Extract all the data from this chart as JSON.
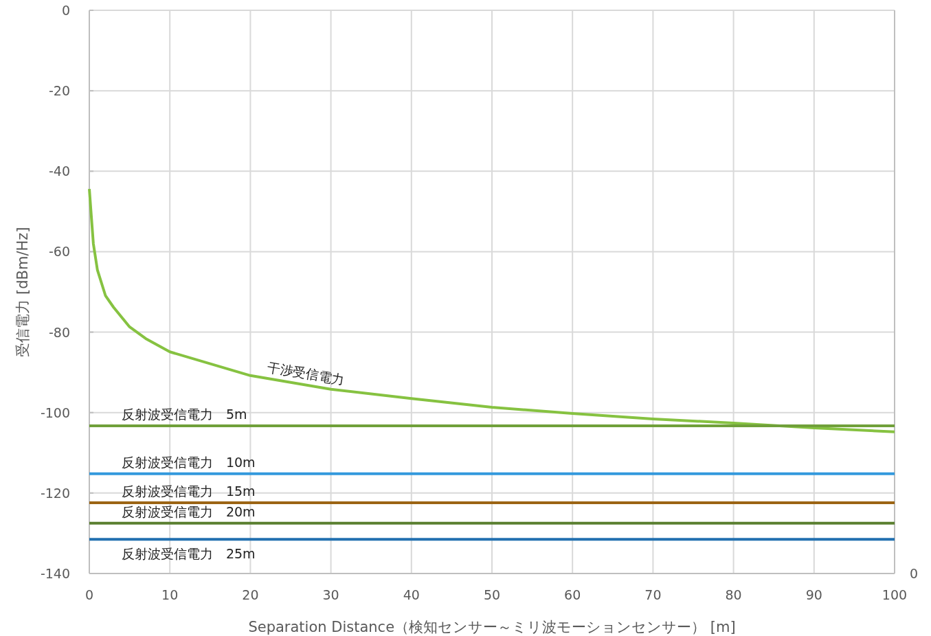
{
  "chart_data": {
    "type": "line",
    "xlabel": "Separation Distance（検知センサー～ミリ波モーションセンサー） [m]",
    "ylabel": "受信電力 [dBm/Hz]",
    "xlim": [
      0,
      100
    ],
    "xticks": [
      0,
      10,
      20,
      30,
      40,
      50,
      60,
      70,
      80,
      90,
      100
    ],
    "ylim": [
      -140,
      0
    ],
    "yticks": [
      -140,
      -120,
      -100,
      -80,
      -60,
      -40,
      -20,
      0
    ],
    "grid": true,
    "legend": false,
    "marker": "none",
    "line_style": "solid",
    "annotations": [
      "0"
    ],
    "series": [
      {
        "name": "干渉受信電力",
        "color": "#86c241",
        "x": [
          0,
          0.5,
          1,
          2,
          3,
          5,
          7,
          10,
          20,
          30,
          40,
          50,
          60,
          70,
          80,
          90,
          100
        ],
        "values": [
          -44.4,
          -58,
          -64.5,
          -70.9,
          -73.8,
          -78.7,
          -81.6,
          -84.9,
          -90.8,
          -94.2,
          -96.5,
          -98.7,
          -100.2,
          -101.6,
          -102.6,
          -103.8,
          -104.8
        ]
      },
      {
        "name": "反射波受信電力　5m",
        "color": "#70a03a",
        "x": [
          0,
          100
        ],
        "values": [
          -103.3,
          -103.3
        ]
      },
      {
        "name": "反射波受信電力　10m",
        "color": "#3399dd",
        "x": [
          0,
          100
        ],
        "values": [
          -115.2,
          -115.2
        ]
      },
      {
        "name": "反射波受信電力　15m",
        "color": "#9c6414",
        "x": [
          0,
          100
        ],
        "values": [
          -122.4,
          -122.4
        ]
      },
      {
        "name": "反射波受信電力　20m",
        "color": "#5a7f30",
        "x": [
          0,
          100
        ],
        "values": [
          -127.5,
          -127.5
        ]
      },
      {
        "name": "反射波受信電力　25m",
        "color": "#2270b0",
        "x": [
          0,
          100
        ],
        "values": [
          -131.5,
          -131.5
        ]
      }
    ]
  }
}
